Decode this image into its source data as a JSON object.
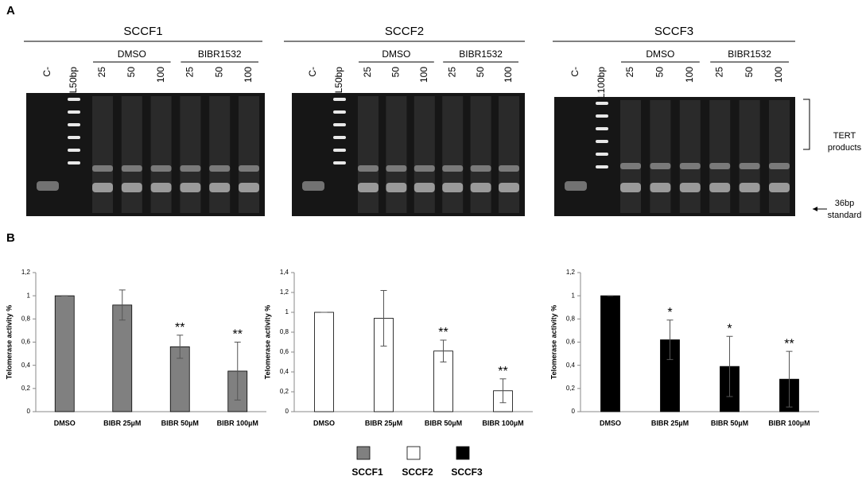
{
  "figure": {
    "panel_a": "A",
    "panel_b": "B",
    "gels": [
      {
        "title": "SCCF1",
        "negative": "C-",
        "ladder": "L50bp",
        "groups": [
          "DMSO",
          "BIBR1532"
        ],
        "lanes": [
          "25",
          "50",
          "100",
          "25",
          "50",
          "100"
        ]
      },
      {
        "title": "SCCF2",
        "negative": "C-",
        "ladder": "L50bp",
        "groups": [
          "DMSO",
          "BIBR1532"
        ],
        "lanes": [
          "25",
          "50",
          "100",
          "25",
          "50",
          "100"
        ]
      },
      {
        "title": "SCCF3",
        "negative": "C-",
        "ladder": "L100bp",
        "groups": [
          "DMSO",
          "BIBR1532"
        ],
        "lanes": [
          "25",
          "50",
          "100",
          "25",
          "50",
          "100"
        ]
      }
    ],
    "tert_label": [
      "TERT",
      "products"
    ],
    "standard_label": [
      "36bp",
      "standard"
    ]
  },
  "chart_data": [
    {
      "type": "bar",
      "y_label": "Telomerase activity %",
      "categories": [
        "DMSO",
        "BIBR 25µM",
        "BIBR 50µM",
        "BIBR 100µM"
      ],
      "series": [
        {
          "name": "SCCF1",
          "color": "#808080",
          "values": [
            1,
            0.92,
            0.56,
            0.35
          ],
          "errors": [
            0,
            0.13,
            0.1,
            0.25
          ]
        }
      ],
      "significance": [
        null,
        null,
        "**",
        "**"
      ],
      "ylim": [
        0,
        1.2
      ],
      "yticks": [
        0,
        {
          "value": 0.2,
          "label": "0,2"
        },
        {
          "value": 0.4,
          "label": "0,4"
        },
        {
          "value": 0.6,
          "label": "0,6"
        },
        {
          "value": 0.8,
          "label": "0,8"
        },
        1,
        {
          "value": 1.2,
          "label": "1,2"
        }
      ]
    },
    {
      "type": "bar",
      "y_label": "Telomerase activity %",
      "categories": [
        "DMSO",
        "BIBR 25µM",
        "BIBR 50µM",
        "BIBR 100µM"
      ],
      "series": [
        {
          "name": "SCCF2",
          "color": "#ffffff",
          "values": [
            1,
            0.94,
            0.61,
            0.21
          ],
          "errors": [
            0,
            0.28,
            0.11,
            0.12
          ]
        }
      ],
      "significance": [
        null,
        null,
        "**",
        "**"
      ],
      "ylim": [
        0,
        1.4
      ],
      "yticks": [
        0,
        {
          "value": 0.2,
          "label": "0,2"
        },
        {
          "value": 0.4,
          "label": "0,4"
        },
        {
          "value": 0.6,
          "label": "0,6"
        },
        {
          "value": 0.8,
          "label": "0,8"
        },
        1,
        {
          "value": 1.2,
          "label": "1,2"
        },
        {
          "value": 1.4,
          "label": "1,4"
        }
      ]
    },
    {
      "type": "bar",
      "y_label": "Telomerase activity %",
      "categories": [
        "DMSO",
        "BIBR 25µM",
        "BIBR 50µM",
        "BIBR 100µM"
      ],
      "series": [
        {
          "name": "SCCF3",
          "color": "#000000",
          "values": [
            1,
            0.62,
            0.39,
            0.28
          ],
          "errors": [
            0,
            0.17,
            0.26,
            0.24
          ]
        }
      ],
      "significance": [
        null,
        "*",
        "*",
        "**"
      ],
      "ylim": [
        0,
        1.2
      ],
      "yticks": [
        0,
        {
          "value": 0.2,
          "label": "0,2"
        },
        {
          "value": 0.4,
          "label": "0,4"
        },
        {
          "value": 0.6,
          "label": "0,6"
        },
        {
          "value": 0.8,
          "label": "0,8"
        },
        1,
        {
          "value": 1.2,
          "label": "1,2"
        }
      ]
    }
  ]
}
